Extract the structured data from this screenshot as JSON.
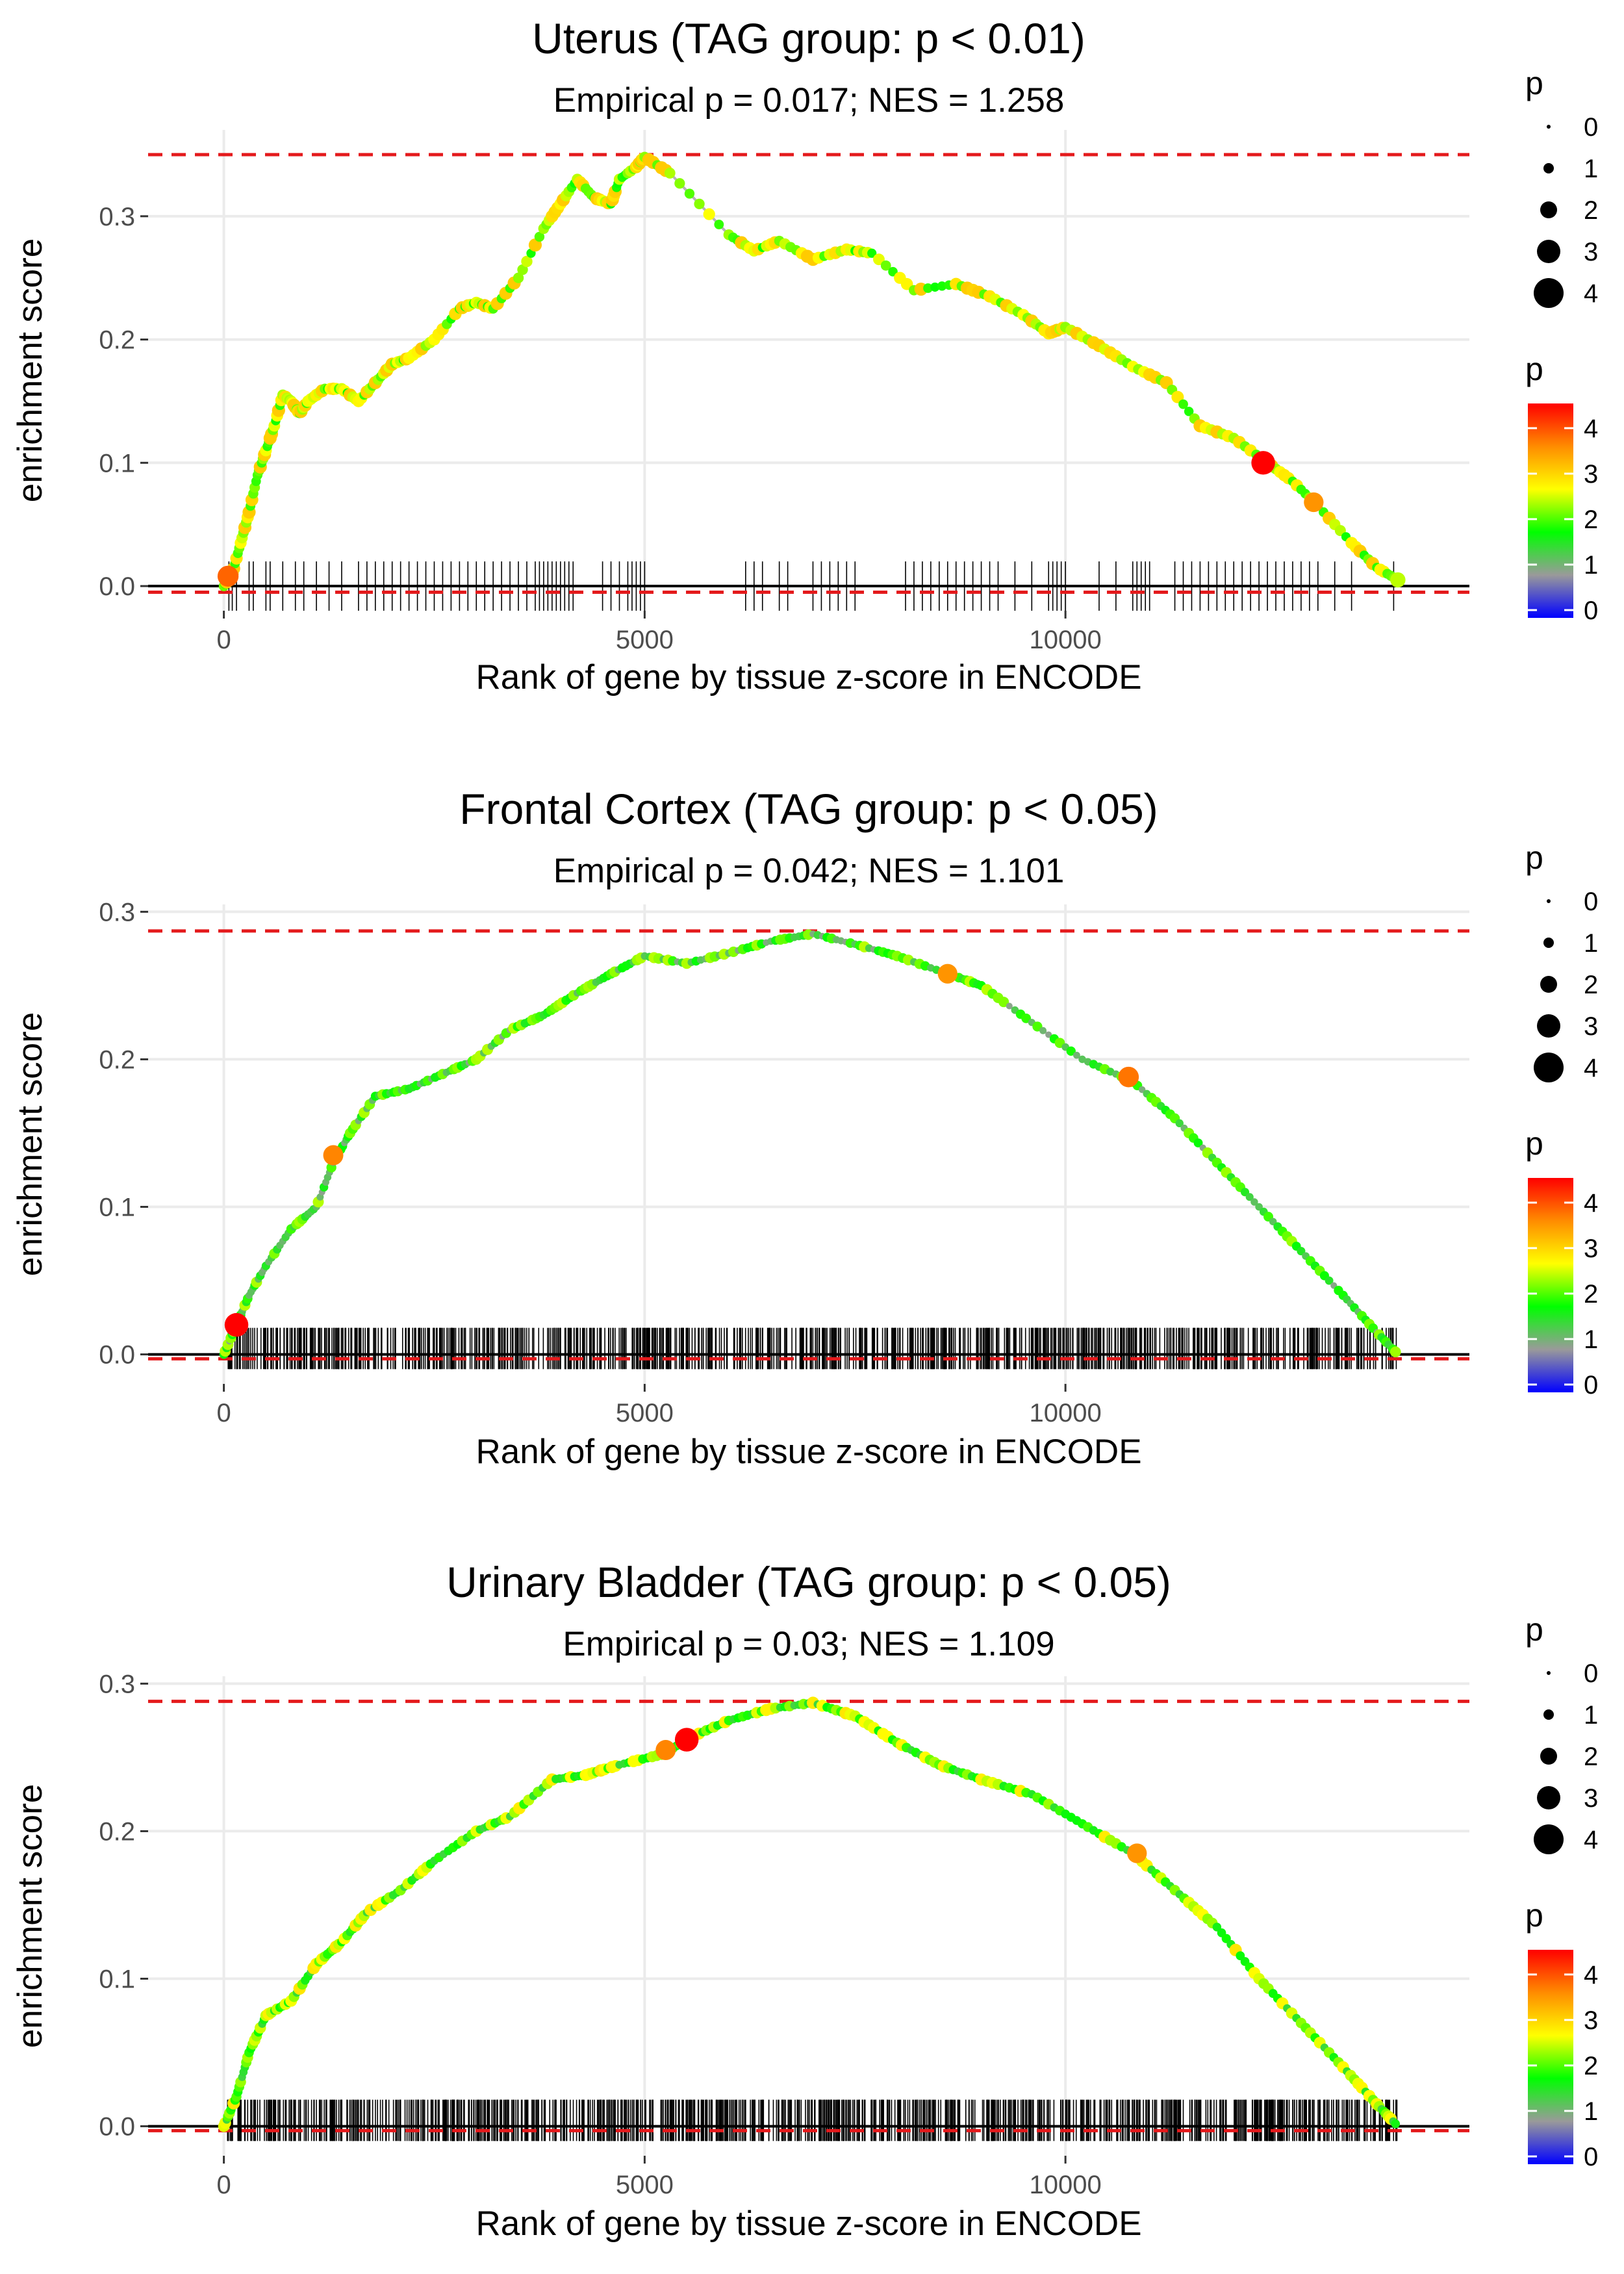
{
  "figure": {
    "panel_ylabel": "enrichment score"
  },
  "chart_data": [
    {
      "type": "line",
      "title": "Uterus (TAG group: p < 0.01)",
      "subtitle": "Empirical p = 0.017; NES = 1.258",
      "xlabel": "Rank of gene by tissue z-score in ENCODE",
      "ylabel": "enrichment score",
      "xlim": [
        -900,
        14800
      ],
      "ylim": [
        -0.02,
        0.37
      ],
      "xticks": [
        0,
        5000,
        10000
      ],
      "xtick_labels": [
        "0",
        "5000",
        "10000"
      ],
      "yticks": [
        0.0,
        0.1,
        0.2,
        0.3
      ],
      "ytick_labels": [
        "0.0",
        "0.1",
        "0.2",
        "0.3"
      ],
      "hlines": [
        {
          "y": 0.35,
          "style": "dashed",
          "color": "#e41a1c"
        },
        {
          "y": -0.005,
          "style": "dashed",
          "color": "#e41a1c"
        },
        {
          "y": 0.0,
          "style": "solid",
          "color": "#000000"
        }
      ],
      "curve": [
        [
          0,
          0.0
        ],
        [
          100,
          0.01
        ],
        [
          200,
          0.035
        ],
        [
          300,
          0.06
        ],
        [
          400,
          0.09
        ],
        [
          500,
          0.11
        ],
        [
          600,
          0.13
        ],
        [
          700,
          0.155
        ],
        [
          800,
          0.15
        ],
        [
          900,
          0.14
        ],
        [
          1000,
          0.15
        ],
        [
          1200,
          0.16
        ],
        [
          1400,
          0.16
        ],
        [
          1600,
          0.15
        ],
        [
          1800,
          0.165
        ],
        [
          2000,
          0.18
        ],
        [
          2200,
          0.185
        ],
        [
          2500,
          0.2
        ],
        [
          2800,
          0.225
        ],
        [
          3000,
          0.23
        ],
        [
          3200,
          0.225
        ],
        [
          3500,
          0.25
        ],
        [
          3800,
          0.29
        ],
        [
          4000,
          0.31
        ],
        [
          4200,
          0.33
        ],
        [
          4400,
          0.315
        ],
        [
          4600,
          0.31
        ],
        [
          4700,
          0.33
        ],
        [
          4900,
          0.34
        ],
        [
          5000,
          0.348
        ],
        [
          5300,
          0.335
        ],
        [
          6000,
          0.285
        ],
        [
          6300,
          0.272
        ],
        [
          6600,
          0.28
        ],
        [
          7000,
          0.265
        ],
        [
          7400,
          0.273
        ],
        [
          7700,
          0.27
        ],
        [
          8200,
          0.24
        ],
        [
          8700,
          0.245
        ],
        [
          9100,
          0.235
        ],
        [
          9500,
          0.22
        ],
        [
          9800,
          0.205
        ],
        [
          10000,
          0.21
        ],
        [
          10400,
          0.195
        ],
        [
          10800,
          0.178
        ],
        [
          11200,
          0.165
        ],
        [
          11600,
          0.13
        ],
        [
          12000,
          0.12
        ],
        [
          12400,
          0.1
        ],
        [
          12700,
          0.085
        ],
        [
          13000,
          0.065
        ],
        [
          13400,
          0.035
        ],
        [
          13700,
          0.015
        ],
        [
          13950,
          0.005
        ]
      ],
      "highlight_points": [
        {
          "x": 50,
          "y": 0.008,
          "p": 3.6
        },
        {
          "x": 12350,
          "y": 0.1,
          "p": 4.2
        },
        {
          "x": 12950,
          "y": 0.068,
          "p": 3.3
        },
        {
          "x": 13950,
          "y": 0.005,
          "p": 2.3
        }
      ],
      "point_p_base": 2.4,
      "rug": {
        "ranks": [
          60,
          100,
          150,
          300,
          350,
          500,
          550,
          700,
          850,
          950,
          1100,
          1250,
          1400,
          1600,
          1700,
          1800,
          1900,
          2000,
          2100,
          2200,
          2300,
          2400,
          2500,
          2600,
          2700,
          2800,
          2900,
          3000,
          3100,
          3200,
          3300,
          3400,
          3500,
          3600,
          3700,
          3750,
          3800,
          3850,
          3900,
          3950,
          4000,
          4050,
          4100,
          4150,
          4500,
          4600,
          4700,
          4800,
          4850,
          4900,
          4950,
          5000,
          6200,
          6300,
          6400,
          6600,
          6700,
          7000,
          7100,
          7200,
          7300,
          7400,
          7500,
          8100,
          8200,
          8300,
          8400,
          8500,
          8600,
          8700,
          8800,
          8900,
          9000,
          9100,
          9200,
          9400,
          9600,
          9800,
          9850,
          9900,
          9950,
          10000,
          10400,
          10600,
          10800,
          10850,
          10900,
          10950,
          11000,
          11300,
          11400,
          11500,
          11600,
          11700,
          11800,
          11900,
          12000,
          12100,
          12200,
          12300,
          12400,
          12500,
          12600,
          12700,
          12800,
          12900,
          13000,
          13200,
          13400,
          13900
        ],
        "y_top": 0.02,
        "y_bottom": -0.02
      }
    },
    {
      "type": "line",
      "title": "Frontal Cortex (TAG group: p < 0.05)",
      "subtitle": "Empirical p = 0.042; NES = 1.101",
      "xlabel": "Rank of gene by tissue z-score in ENCODE",
      "ylabel": "enrichment score",
      "xlim": [
        -900,
        14800
      ],
      "ylim": [
        -0.02,
        0.305
      ],
      "xticks": [
        0,
        5000,
        10000
      ],
      "xtick_labels": [
        "0",
        "5000",
        "10000"
      ],
      "yticks": [
        0.0,
        0.1,
        0.2,
        0.3
      ],
      "ytick_labels": [
        "0.0",
        "0.1",
        "0.2",
        "0.3"
      ],
      "hlines": [
        {
          "y": 0.287,
          "style": "dashed",
          "color": "#e41a1c"
        },
        {
          "y": -0.003,
          "style": "dashed",
          "color": "#e41a1c"
        },
        {
          "y": 0.0,
          "style": "solid",
          "color": "#000000"
        }
      ],
      "curve": [
        [
          0,
          0.0
        ],
        [
          150,
          0.02
        ],
        [
          300,
          0.04
        ],
        [
          500,
          0.06
        ],
        [
          800,
          0.085
        ],
        [
          1100,
          0.1
        ],
        [
          1300,
          0.13
        ],
        [
          1500,
          0.15
        ],
        [
          1800,
          0.175
        ],
        [
          2200,
          0.18
        ],
        [
          2600,
          0.19
        ],
        [
          3000,
          0.2
        ],
        [
          3400,
          0.22
        ],
        [
          3800,
          0.23
        ],
        [
          4200,
          0.245
        ],
        [
          4600,
          0.258
        ],
        [
          5000,
          0.27
        ],
        [
          5500,
          0.265
        ],
        [
          6000,
          0.272
        ],
        [
          6500,
          0.28
        ],
        [
          7000,
          0.285
        ],
        [
          7500,
          0.278
        ],
        [
          8000,
          0.27
        ],
        [
          8600,
          0.258
        ],
        [
          9000,
          0.25
        ],
        [
          9600,
          0.225
        ],
        [
          10200,
          0.2
        ],
        [
          10800,
          0.185
        ],
        [
          11300,
          0.16
        ],
        [
          11800,
          0.13
        ],
        [
          12300,
          0.1
        ],
        [
          12800,
          0.07
        ],
        [
          13300,
          0.04
        ],
        [
          13700,
          0.015
        ],
        [
          13950,
          0.0
        ]
      ],
      "highlight_points": [
        {
          "x": 150,
          "y": 0.02,
          "p": 4.2
        },
        {
          "x": 1300,
          "y": 0.135,
          "p": 3.4
        },
        {
          "x": 8600,
          "y": 0.258,
          "p": 3.3
        },
        {
          "x": 10750,
          "y": 0.188,
          "p": 3.5
        }
      ],
      "point_p_base": 1.6,
      "rug": {
        "ranks": [],
        "count": 900,
        "y_top": 0.018,
        "y_bottom": -0.01
      }
    },
    {
      "type": "line",
      "title": "Urinary Bladder (TAG group: p < 0.05)",
      "subtitle": "Empirical p = 0.03; NES = 1.109",
      "xlabel": "Rank of gene by tissue z-score in ENCODE",
      "ylabel": "enrichment score",
      "xlim": [
        -900,
        14800
      ],
      "ylim": [
        -0.02,
        0.305
      ],
      "xticks": [
        0,
        5000,
        10000
      ],
      "xtick_labels": [
        "0",
        "5000",
        "10000"
      ],
      "yticks": [
        0.0,
        0.1,
        0.2,
        0.3
      ],
      "ytick_labels": [
        "0.0",
        "0.1",
        "0.2",
        "0.3"
      ],
      "hlines": [
        {
          "y": 0.288,
          "style": "dashed",
          "color": "#e41a1c"
        },
        {
          "y": -0.003,
          "style": "dashed",
          "color": "#e41a1c"
        },
        {
          "y": 0.0,
          "style": "solid",
          "color": "#000000"
        }
      ],
      "curve": [
        [
          0,
          0.0
        ],
        [
          150,
          0.02
        ],
        [
          300,
          0.05
        ],
        [
          500,
          0.075
        ],
        [
          800,
          0.085
        ],
        [
          1100,
          0.11
        ],
        [
          1400,
          0.125
        ],
        [
          1700,
          0.145
        ],
        [
          2100,
          0.16
        ],
        [
          2500,
          0.18
        ],
        [
          3000,
          0.2
        ],
        [
          3400,
          0.21
        ],
        [
          3900,
          0.235
        ],
        [
          4300,
          0.238
        ],
        [
          4700,
          0.245
        ],
        [
          5200,
          0.252
        ],
        [
          5600,
          0.265
        ],
        [
          6000,
          0.275
        ],
        [
          6500,
          0.283
        ],
        [
          7000,
          0.287
        ],
        [
          7500,
          0.278
        ],
        [
          8000,
          0.26
        ],
        [
          8500,
          0.245
        ],
        [
          9000,
          0.235
        ],
        [
          9600,
          0.225
        ],
        [
          10200,
          0.205
        ],
        [
          10800,
          0.185
        ],
        [
          11300,
          0.16
        ],
        [
          11800,
          0.135
        ],
        [
          12300,
          0.1
        ],
        [
          12800,
          0.07
        ],
        [
          13300,
          0.04
        ],
        [
          13700,
          0.015
        ],
        [
          13950,
          0.0
        ]
      ],
      "highlight_points": [
        {
          "x": 5500,
          "y": 0.262,
          "p": 4.2
        },
        {
          "x": 5250,
          "y": 0.255,
          "p": 3.4
        },
        {
          "x": 10850,
          "y": 0.185,
          "p": 3.3
        }
      ],
      "point_p_base": 2.0,
      "rug": {
        "ranks": [],
        "count": 950,
        "y_top": 0.018,
        "y_bottom": -0.01
      }
    }
  ],
  "legends": {
    "size_title": "p",
    "size_labels": [
      "0",
      "1",
      "2",
      "3",
      "4"
    ],
    "color_title": "p",
    "color_labels": [
      "0",
      "1",
      "2",
      "3",
      "4"
    ],
    "color_stops": [
      "#0000ff",
      "#9a9a9a",
      "#00ff00",
      "#ffff00",
      "#ff8c00",
      "#ff0000"
    ]
  },
  "colors": {
    "grid": "#ebebeb",
    "curve": "#b5b5b5",
    "refline": "#e41a1c",
    "rug": "#000000"
  }
}
